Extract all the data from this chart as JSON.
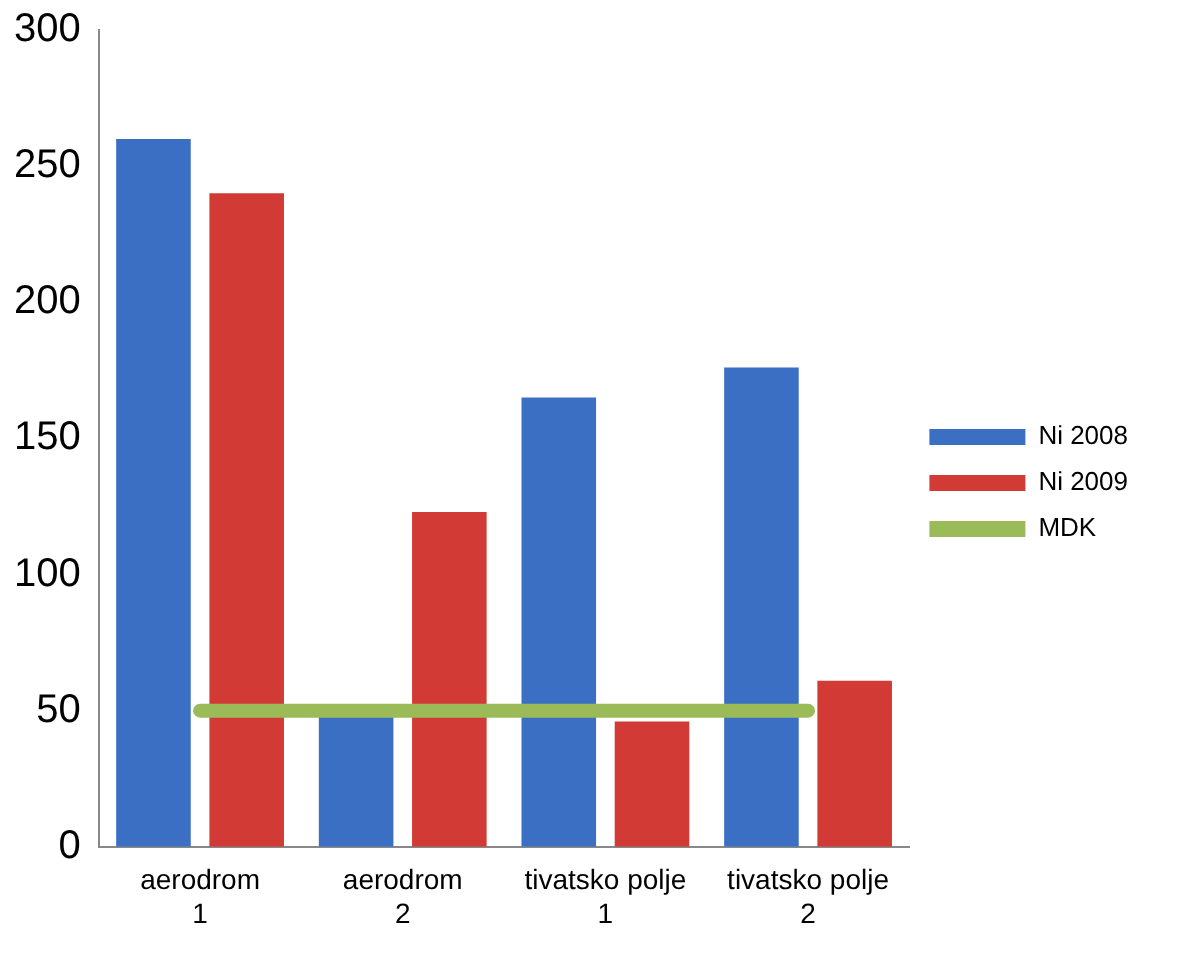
{
  "chart_data": {
    "type": "bar",
    "categories": [
      "aerodrom 1",
      "aerodrom 2",
      "tivatsko polje 1",
      "tivatsko polje 2"
    ],
    "series": [
      {
        "name": "Ni 2008",
        "color": "#3a6fc4",
        "values": [
          260,
          48,
          165,
          176
        ]
      },
      {
        "name": "Ni 2009",
        "color": "#d23a36",
        "values": [
          240,
          123,
          46,
          61
        ]
      },
      {
        "name": "MDK",
        "type": "line",
        "color": "#9bbb59",
        "values": [
          50,
          50,
          50,
          50
        ],
        "marker": "none"
      }
    ],
    "ylim": [
      0,
      300
    ],
    "yticks": [
      0,
      50,
      100,
      150,
      200,
      250,
      300
    ],
    "grid": false,
    "legend": "right"
  }
}
